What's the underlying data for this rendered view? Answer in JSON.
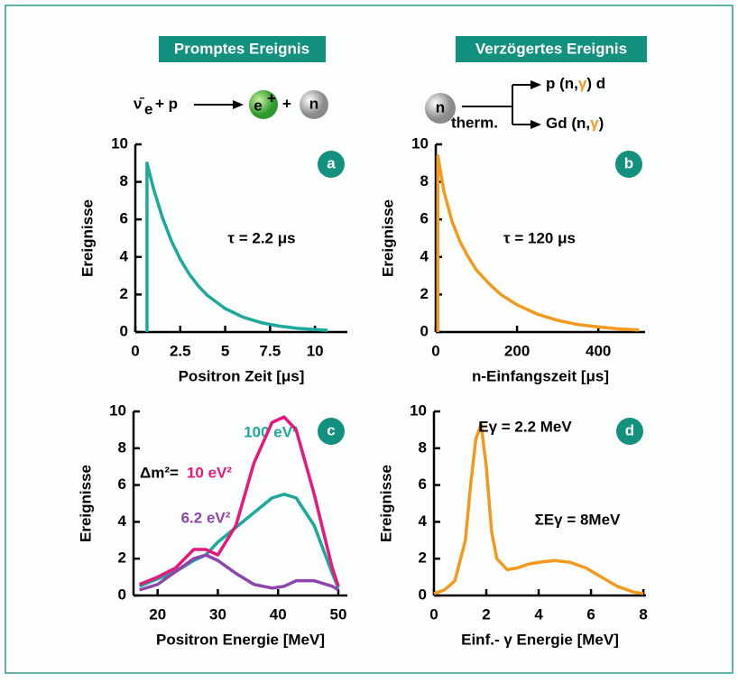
{
  "header": {
    "prompt_title": "Promptes Ereignis",
    "delayed_title": "Verzögertes Ereignis"
  },
  "reaction": {
    "prompt": {
      "nu": "ν̄",
      "nu_sub": "e",
      "plus_p": "+ p",
      "positron": "e",
      "positron_sup": "+",
      "plus": "+",
      "neutron": "n"
    },
    "delayed": {
      "neutron": "n",
      "neutron_sub": "therm.",
      "c1a": "p (n,",
      "c1g": "γ",
      "c1b": ") d",
      "c2a": "Gd (n,",
      "c2g": "γ",
      "c2b": ")"
    }
  },
  "chart_data": [
    {
      "type": "line",
      "panel_label": "a",
      "x_label": "Positron Zeit [μs]",
      "y_label": "Ereignisse",
      "annotations": [
        "τ = 2.2 μs"
      ],
      "x": [
        0.65,
        0.65,
        1,
        1.5,
        2,
        2.5,
        3,
        3.5,
        4,
        5,
        6,
        7,
        8,
        9,
        10,
        10.7
      ],
      "values": [
        0,
        9,
        7.68,
        6.12,
        4.87,
        3.88,
        3.09,
        2.46,
        1.96,
        1.25,
        0.79,
        0.5,
        0.32,
        0.2,
        0.13,
        0.09
      ],
      "color": "#1aa99a",
      "xlim": [
        0,
        11.8
      ],
      "xticks": [
        0,
        2.5,
        5,
        7.5,
        10
      ],
      "ylim": [
        0,
        10
      ],
      "yticks": [
        0,
        2,
        4,
        6,
        8,
        10
      ]
    },
    {
      "type": "line",
      "panel_label": "b",
      "x_label": "n-Einfangszeit  [μs]",
      "y_label": "Ereignisse",
      "annotations": [
        "τ = 120 μs"
      ],
      "x": [
        5,
        5,
        20,
        40,
        60,
        80,
        100,
        130,
        160,
        200,
        250,
        300,
        350,
        400,
        450,
        500
      ],
      "values": [
        0,
        9.4,
        7.5,
        5.9,
        4.8,
        4.0,
        3.3,
        2.6,
        2.0,
        1.45,
        0.95,
        0.62,
        0.4,
        0.27,
        0.17,
        0.11
      ],
      "color": "#f39a1e",
      "xlim": [
        0,
        515
      ],
      "xticks": [
        0,
        200,
        400
      ],
      "ylim": [
        0,
        10
      ],
      "yticks": [
        0,
        2,
        4,
        6,
        8,
        10
      ]
    },
    {
      "type": "line",
      "panel_label": "c",
      "x_label": "Positron Energie [MeV]",
      "y_label": "Ereignisse",
      "annotations": [
        "Δm²="
      ],
      "x": [
        17,
        20,
        23,
        26,
        28,
        30,
        33,
        36,
        39,
        41,
        43,
        46,
        49,
        50
      ],
      "series": [
        {
          "name": "100 eV²",
          "color": "#1aa99a",
          "values": [
            0.5,
            0.9,
            1.3,
            1.9,
            2.2,
            2.9,
            3.7,
            4.5,
            5.3,
            5.5,
            5.3,
            3.8,
            1.2,
            0.4
          ]
        },
        {
          "name": "10 eV²",
          "color": "#e8177b",
          "values": [
            0.6,
            1.0,
            1.5,
            2.5,
            2.5,
            2.2,
            3.8,
            7.2,
            9.4,
            9.7,
            9.0,
            5.5,
            1.5,
            0.5
          ]
        },
        {
          "name": "6.2 eV²",
          "color": "#8e44ad",
          "values": [
            0.3,
            0.6,
            1.3,
            2.0,
            2.2,
            1.9,
            1.2,
            0.6,
            0.4,
            0.5,
            0.8,
            0.8,
            0.5,
            0.3
          ]
        }
      ],
      "xlim": [
        16,
        51.5
      ],
      "xticks": [
        20,
        30,
        40,
        50
      ],
      "ylim": [
        0,
        10
      ],
      "yticks": [
        0,
        2,
        4,
        6,
        8,
        10
      ]
    },
    {
      "type": "line",
      "panel_label": "d",
      "x_label": "Einf.- γ Energie [MeV]",
      "y_label": "Ereignisse",
      "annotations": [
        "Eγ = 2.2 MeV",
        "ΣEγ = 8MeV"
      ],
      "x": [
        0,
        0.4,
        0.8,
        1.2,
        1.4,
        1.6,
        1.8,
        2.0,
        2.2,
        2.4,
        2.8,
        3.2,
        3.6,
        4.0,
        4.6,
        5.2,
        5.8,
        6.4,
        7.0,
        7.6,
        8.0
      ],
      "values": [
        0.1,
        0.3,
        0.8,
        3.0,
        6.0,
        8.5,
        9.3,
        7.0,
        3.5,
        2.0,
        1.4,
        1.5,
        1.7,
        1.8,
        1.9,
        1.8,
        1.5,
        1.0,
        0.5,
        0.2,
        0.1
      ],
      "color": "#f39a1e",
      "xlim": [
        0,
        8.1
      ],
      "xticks": [
        0,
        2,
        4,
        6,
        8
      ],
      "ylim": [
        0,
        10
      ],
      "yticks": [
        0,
        2,
        4,
        6,
        8,
        10
      ]
    }
  ]
}
